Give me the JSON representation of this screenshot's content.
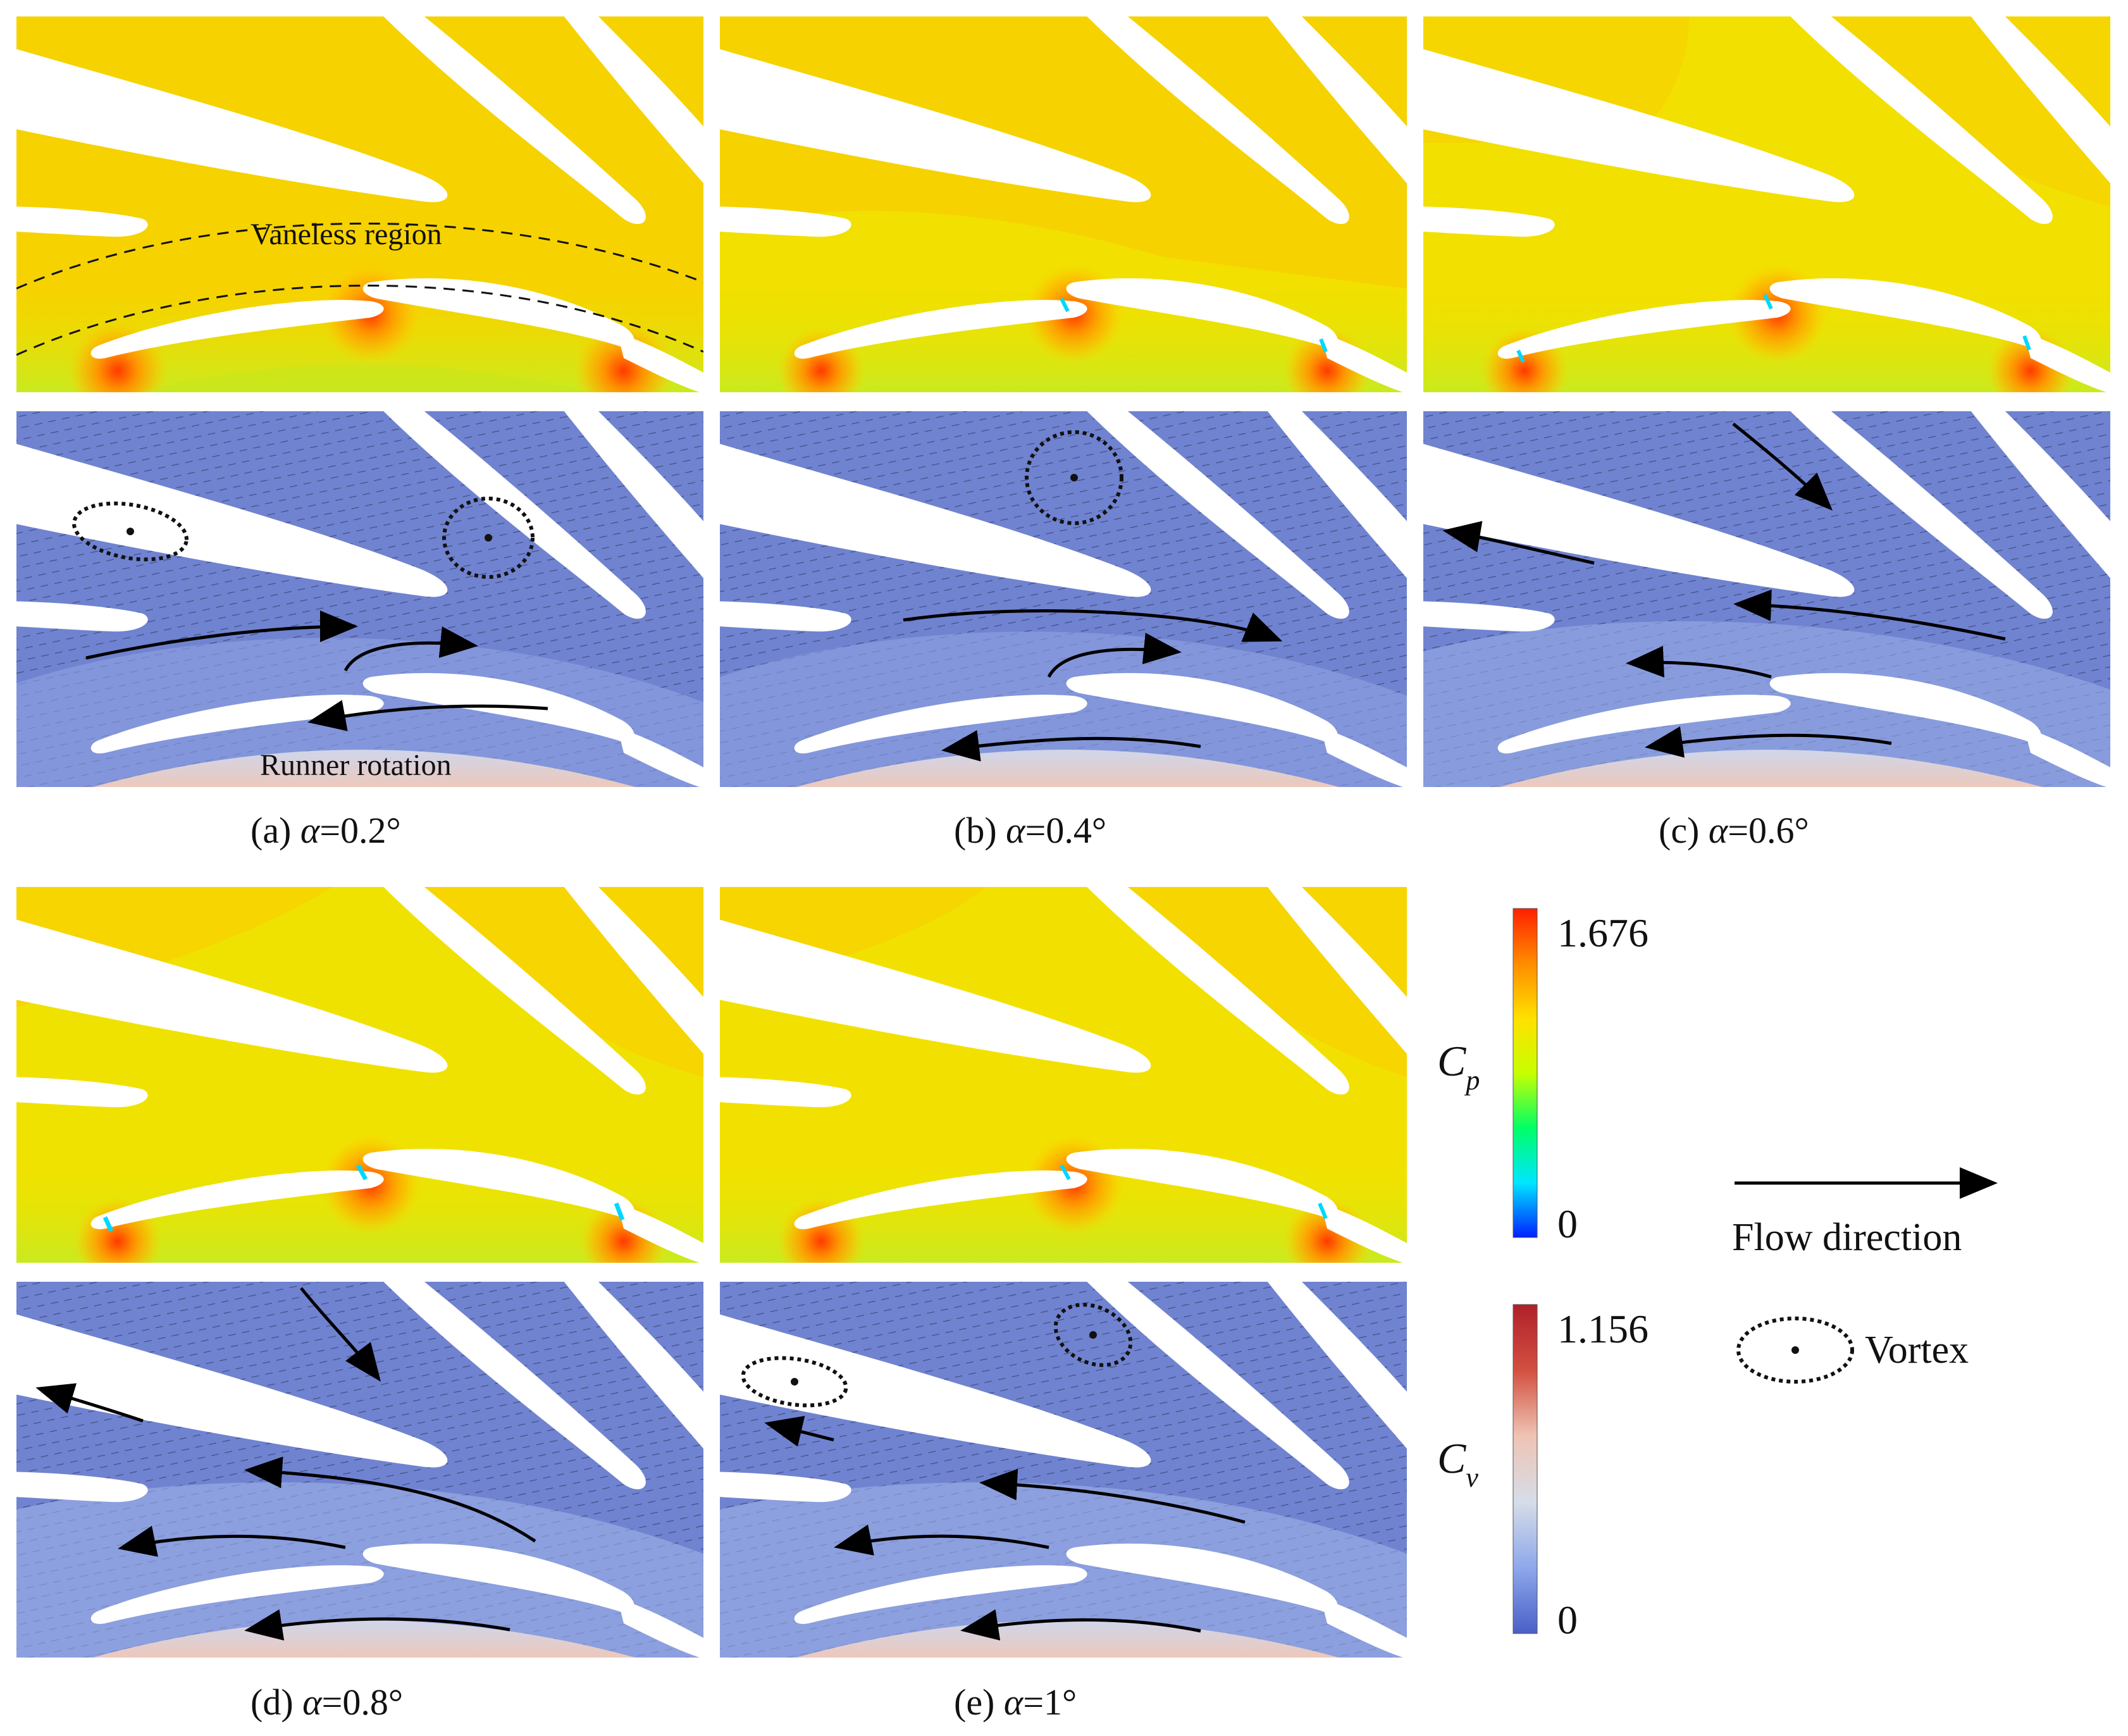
{
  "panels": [
    {
      "id": "a",
      "caption": "(a) α=0.2°",
      "caption_prefix": "(a) ",
      "alpha": "0.2",
      "cp_fill": "#f6d700",
      "annotations": {
        "vaneless_label": "Vaneless region",
        "runner_label": "Runner rotation"
      }
    },
    {
      "id": "b",
      "caption": "(b) α=0.4°",
      "caption_prefix": "(b) ",
      "alpha": "0.4",
      "cp_fill": "#f8dc00"
    },
    {
      "id": "c",
      "caption": "(c) α=0.6°",
      "caption_prefix": "(c) ",
      "alpha": "0.6",
      "cp_fill": "#f2e400"
    },
    {
      "id": "d",
      "caption": "(d) α=0.8°",
      "caption_prefix": "(d) ",
      "alpha": "0.8",
      "cp_fill": "#f0e300"
    },
    {
      "id": "e",
      "caption": "(e) α=1°",
      "caption_prefix": "(e) ",
      "alpha": "1",
      "cp_fill": "#f3e100"
    }
  ],
  "colorbars": {
    "cp": {
      "max_label": "1.676",
      "min_label": "0",
      "variable": "C",
      "subscript": "p",
      "max": 1.676,
      "min": 0,
      "colors": [
        "#0020ff",
        "#00e6ff",
        "#00ff66",
        "#c8ff00",
        "#ffe000",
        "#ff8c00",
        "#ff2000"
      ]
    },
    "cv": {
      "max_label": "1.156",
      "min_label": "0",
      "variable": "C",
      "subscript": "v",
      "max": 1.156,
      "min": 0,
      "colors": [
        "#4a5fc8",
        "#8ea8ea",
        "#d6dde8",
        "#eec4b4",
        "#d35040",
        "#b0202a"
      ]
    }
  },
  "legend": {
    "flow_label": "Flow direction",
    "vortex_label": "Vortex"
  },
  "colors": {
    "cp_background": "#f6d200",
    "cv_background": "#7083d0",
    "runner": "#ead8d0",
    "blade": "#ffffff"
  }
}
